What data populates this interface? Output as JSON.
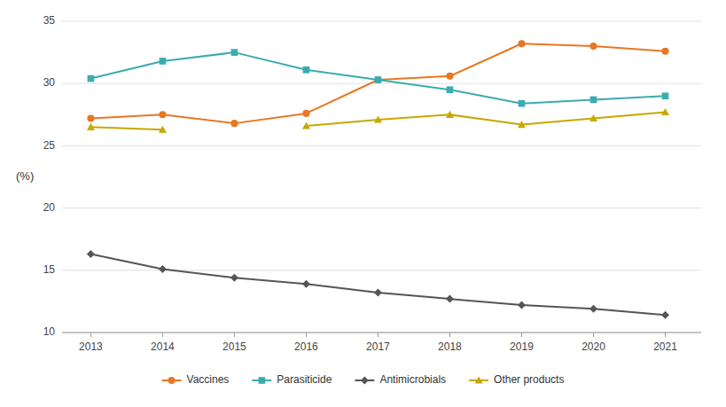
{
  "chart_data": {
    "type": "line",
    "y_label": "(%)",
    "x": [
      2013,
      2014,
      2015,
      2016,
      2017,
      2018,
      2019,
      2020,
      2021
    ],
    "xlim": [
      2012.6,
      2021.5
    ],
    "xticks": [
      2013,
      2014,
      2015,
      2016,
      2017,
      2018,
      2019,
      2020,
      2021
    ],
    "ylim": [
      10,
      35
    ],
    "yticks": [
      10,
      15,
      20,
      25,
      30,
      35
    ],
    "grid": true,
    "legend": "bottom",
    "series": [
      {
        "name": "Vaccines",
        "color": "#E87722",
        "marker": "circle",
        "values": [
          27.2,
          27.5,
          26.8,
          27.6,
          30.3,
          30.6,
          33.2,
          33.0,
          32.6
        ]
      },
      {
        "name": "Parasiticide",
        "color": "#3AACB0",
        "marker": "square",
        "values": [
          30.4,
          31.8,
          32.5,
          31.1,
          30.3,
          29.5,
          28.4,
          28.7,
          29.0
        ]
      },
      {
        "name": "Antimicrobials",
        "color": "#555555",
        "marker": "diamond",
        "values": [
          16.3,
          15.1,
          14.4,
          13.9,
          13.2,
          12.7,
          12.2,
          11.9,
          11.4
        ]
      },
      {
        "name": "Other products",
        "color": "#C8A800",
        "marker": "triangle",
        "values": [
          26.5,
          26.3,
          null,
          26.6,
          27.1,
          27.5,
          26.7,
          27.2,
          27.7
        ]
      }
    ]
  }
}
